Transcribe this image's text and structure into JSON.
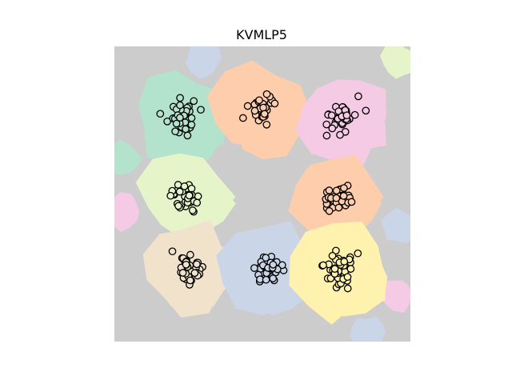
{
  "chart_data": {
    "type": "scatter",
    "title": "KVMLP5",
    "xlabel": "",
    "ylabel": "",
    "axes_visible": false,
    "grid": false,
    "xlim": [
      0,
      1
    ],
    "ylim": [
      0,
      1
    ],
    "background_color": "#cccccc",
    "marker": "hollow-circle",
    "clusters": [
      {
        "color": "#b3e2cd",
        "center": [
          0.23,
          0.76
        ],
        "n": 40,
        "spread": 0.045
      },
      {
        "color": "#fdcdac",
        "center": [
          0.49,
          0.78
        ],
        "n": 36,
        "spread": 0.035
      },
      {
        "color": "#f4cae4",
        "center": [
          0.77,
          0.76
        ],
        "n": 40,
        "spread": 0.045
      },
      {
        "color": "#e6f5c9",
        "center": [
          0.24,
          0.49
        ],
        "n": 36,
        "spread": 0.04
      },
      {
        "color": "#fdcdac",
        "center": [
          0.75,
          0.49
        ],
        "n": 38,
        "spread": 0.04
      },
      {
        "color": "#f1e2cc",
        "center": [
          0.25,
          0.25
        ],
        "n": 40,
        "spread": 0.045
      },
      {
        "color": "#cbd5e8",
        "center": [
          0.52,
          0.24
        ],
        "n": 38,
        "spread": 0.04
      },
      {
        "color": "#fff2ae",
        "center": [
          0.76,
          0.24
        ],
        "n": 40,
        "spread": 0.045
      }
    ],
    "edge_patches": [
      {
        "color": "#cbd5e8",
        "center": [
          0.3,
          0.96
        ]
      },
      {
        "color": "#e6f5c9",
        "center": [
          0.96,
          0.95
        ]
      },
      {
        "color": "#b3e2cd",
        "center": [
          0.03,
          0.62
        ]
      },
      {
        "color": "#f4cae4",
        "center": [
          0.03,
          0.44
        ]
      },
      {
        "color": "#cbd5e8",
        "center": [
          0.96,
          0.39
        ]
      },
      {
        "color": "#f4cae4",
        "center": [
          0.95,
          0.16
        ]
      },
      {
        "color": "#cbd5e8",
        "center": [
          0.86,
          0.03
        ]
      }
    ]
  }
}
